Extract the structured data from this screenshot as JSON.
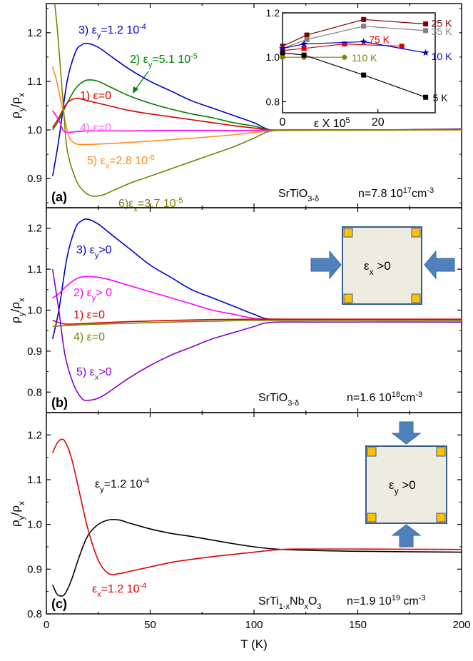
{
  "chart_data": [
    {
      "type": "line",
      "panel_label": "(a)",
      "ylabel": "ρy/ρx",
      "xlabel": "",
      "xlim": [
        0,
        200
      ],
      "ylim": [
        0.84,
        1.26
      ],
      "yticks": [
        "0.9",
        "1.0",
        "1.1",
        "1.2"
      ],
      "sample": "SrTiO3-δ",
      "density": "n=7.8 10^17 cm^-3",
      "series": [
        {
          "name": "3) εy=1.2 10^-4",
          "color": "#0000cc",
          "x": [
            3,
            6,
            10,
            14,
            17,
            20,
            25,
            30,
            40,
            50,
            60,
            70,
            80,
            90,
            100,
            108,
            120,
            140,
            160,
            200
          ],
          "values": [
            0.905,
            0.98,
            1.1,
            1.16,
            1.175,
            1.178,
            1.17,
            1.155,
            1.125,
            1.1,
            1.08,
            1.06,
            1.045,
            1.03,
            1.015,
            1.0,
            1.0,
            1.0,
            1.0,
            1.002
          ]
        },
        {
          "name": "2) εy=5.1 10^-5",
          "color": "#007f00",
          "x": [
            3,
            6,
            10,
            14,
            18,
            21,
            25,
            30,
            40,
            50,
            60,
            70,
            80,
            90,
            100,
            108,
            120,
            160,
            200
          ],
          "values": [
            1.0,
            1.02,
            1.055,
            1.085,
            1.1,
            1.103,
            1.1,
            1.09,
            1.07,
            1.055,
            1.043,
            1.033,
            1.025,
            1.015,
            1.008,
            1.0,
            1.0,
            1.0,
            1.001
          ]
        },
        {
          "name": "1) ε=0",
          "color": "#dd0000",
          "x": [
            3,
            6,
            9,
            12,
            15,
            20,
            30,
            40,
            50,
            60,
            70,
            80,
            90,
            100,
            108,
            120,
            160,
            200
          ],
          "values": [
            1.005,
            1.025,
            1.05,
            1.062,
            1.065,
            1.06,
            1.05,
            1.04,
            1.033,
            1.027,
            1.021,
            1.015,
            1.009,
            1.004,
            1.0,
            1.0,
            1.0,
            1.001
          ]
        },
        {
          "name": "4) ε=0",
          "color": "#ff00ff",
          "x": [
            3,
            6,
            8,
            10,
            13,
            20,
            40,
            60,
            80,
            100,
            110,
            150,
            200
          ],
          "values": [
            1.04,
            1.02,
            1.0,
            0.995,
            0.996,
            0.998,
            0.998,
            0.999,
            0.999,
            0.999,
            1.0,
            1.0,
            1.0
          ]
        },
        {
          "name": "5) εx=2.8 10^-6",
          "color": "#ff8c1a",
          "x": [
            3,
            5,
            7,
            9,
            11,
            14,
            18,
            25,
            35,
            50,
            70,
            90,
            108,
            130,
            200
          ],
          "values": [
            1.13,
            1.1,
            1.06,
            1.02,
            0.985,
            0.972,
            0.97,
            0.971,
            0.973,
            0.977,
            0.983,
            0.99,
            0.998,
            0.999,
            1.0
          ]
        },
        {
          "name": "6) εx=3.7 10^-5",
          "color": "#7f7f00",
          "x": [
            4,
            5,
            6,
            8,
            10,
            14,
            18,
            22,
            27,
            32,
            40,
            50,
            60,
            70,
            80,
            90,
            100,
            108,
            120,
            160,
            200
          ],
          "values": [
            1.26,
            1.22,
            1.17,
            1.06,
            0.96,
            0.9,
            0.874,
            0.864,
            0.866,
            0.875,
            0.89,
            0.905,
            0.92,
            0.935,
            0.95,
            0.965,
            0.983,
            0.998,
            1.0,
            1.0,
            1.001
          ]
        }
      ],
      "annotations": [
        "3) εy=1.2 10^-4",
        "2) εy=5.1 10^-5",
        "1) ε=0",
        "4) ε=0",
        "5) εx=2.8 10^-6",
        "6) εx=3.7 10^-5"
      ],
      "inset": {
        "type": "line",
        "xlabel": "ε X 10^5",
        "xlim": [
          0,
          32
        ],
        "ylim": [
          0.75,
          1.2
        ],
        "xticks": [
          "0",
          "20"
        ],
        "yticks": [
          "0.8",
          "1.0",
          "1.2"
        ],
        "series": [
          {
            "name": "25 K",
            "color": "#7f0000",
            "marker": "square",
            "x": [
              0,
              5.1,
              17,
              30
            ],
            "values": [
              1.05,
              1.1,
              1.17,
              1.15
            ]
          },
          {
            "name": "35 K",
            "color": "#808080",
            "marker": "square",
            "x": [
              0,
              5.1,
              17,
              30
            ],
            "values": [
              1.04,
              1.08,
              1.14,
              1.12
            ]
          },
          {
            "name": "75 K",
            "color": "#dd0000",
            "marker": "square",
            "x": [
              0,
              4.5,
              13,
              25
            ],
            "values": [
              1.03,
              1.04,
              1.06,
              1.05
            ]
          },
          {
            "name": "10 K",
            "color": "#0000cc",
            "marker": "star",
            "x": [
              0,
              4.5,
              17,
              30
            ],
            "values": [
              1.04,
              1.06,
              1.07,
              1.02
            ]
          },
          {
            "name": "110 K",
            "color": "#7f7f00",
            "marker": "circle",
            "x": [
              0,
              4.5,
              13
            ],
            "values": [
              1.0,
              1.0,
              1.0
            ]
          },
          {
            "name": "5 K",
            "color": "#000000",
            "marker": "square",
            "x": [
              0,
              4.5,
              17,
              30
            ],
            "values": [
              1.02,
              1.01,
              0.92,
              0.82
            ]
          }
        ]
      }
    },
    {
      "type": "line",
      "panel_label": "(b)",
      "ylabel": "ρy/ρx",
      "xlabel": "",
      "xlim": [
        0,
        200
      ],
      "ylim": [
        0.75,
        1.25
      ],
      "yticks": [
        "0.8",
        "0.9",
        "1.0",
        "1.1",
        "1.2"
      ],
      "sample": "SrTiO3-δ",
      "density": "n=1.6 10^18 cm^-3",
      "series": [
        {
          "name": "3) εy>0",
          "color": "#0000cc",
          "x": [
            3,
            6,
            10,
            14,
            17,
            20,
            25,
            30,
            40,
            50,
            60,
            70,
            80,
            90,
            100,
            108,
            130,
            200
          ],
          "values": [
            0.93,
            1.0,
            1.13,
            1.2,
            1.218,
            1.222,
            1.21,
            1.19,
            1.15,
            1.11,
            1.08,
            1.05,
            1.03,
            1.01,
            0.99,
            0.978,
            0.976,
            0.975
          ]
        },
        {
          "name": "2) εy> 0",
          "color": "#ff00ff",
          "x": [
            3,
            6,
            10,
            15,
            20,
            25,
            30,
            40,
            50,
            60,
            70,
            80,
            90,
            100,
            108,
            130,
            200
          ],
          "values": [
            1.03,
            1.04,
            1.06,
            1.078,
            1.082,
            1.08,
            1.075,
            1.06,
            1.045,
            1.03,
            1.015,
            1.0,
            0.99,
            0.98,
            0.977,
            0.976,
            0.976
          ]
        },
        {
          "name": "1) ε=0",
          "color": "#dd0000",
          "x": [
            3,
            8,
            12,
            20,
            40,
            60,
            80,
            100,
            120,
            160,
            200
          ],
          "values": [
            0.975,
            0.967,
            0.966,
            0.968,
            0.972,
            0.975,
            0.977,
            0.978,
            0.978,
            0.978,
            0.978
          ]
        },
        {
          "name": "4) ε=0",
          "color": "#7f7f00",
          "x": [
            3,
            8,
            12,
            20,
            40,
            60,
            80,
            100,
            120,
            160,
            200
          ],
          "values": [
            0.96,
            0.962,
            0.963,
            0.965,
            0.968,
            0.971,
            0.973,
            0.975,
            0.975,
            0.975,
            0.975
          ]
        },
        {
          "name": "5) εx>0",
          "color": "#8800cc",
          "x": [
            3,
            6,
            9,
            13,
            17,
            20,
            25,
            30,
            40,
            50,
            60,
            70,
            80,
            90,
            100,
            108,
            130,
            200
          ],
          "values": [
            1.1,
            1.0,
            0.89,
            0.82,
            0.785,
            0.78,
            0.785,
            0.8,
            0.835,
            0.865,
            0.89,
            0.91,
            0.93,
            0.945,
            0.96,
            0.97,
            0.971,
            0.971
          ]
        }
      ],
      "annotations": [
        "3) εy>0",
        "2) εy> 0",
        "1) ε=0",
        "4) ε=0",
        "5) εx>0"
      ],
      "diagram_label": "εx>0"
    },
    {
      "type": "line",
      "panel_label": "(c)",
      "ylabel": "ρy/ρx",
      "xlabel": "T (K)",
      "xlim": [
        0,
        200
      ],
      "ylim": [
        0.8,
        1.25
      ],
      "xticks": [
        "0",
        "50",
        "100",
        "150",
        "200"
      ],
      "yticks": [
        "0.8",
        "0.9",
        "1.0",
        "1.1",
        "1.2"
      ],
      "sample": "SrTi1-xNbxO3",
      "density": "n=1.9 10^19 cm^-3",
      "series": [
        {
          "name": "εy=1.2 10^-4",
          "color": "#000000",
          "x": [
            3,
            5,
            7,
            9,
            12,
            16,
            20,
            25,
            30,
            35,
            40,
            50,
            60,
            70,
            80,
            90,
            100,
            110,
            120,
            150,
            200
          ],
          "values": [
            0.865,
            0.845,
            0.84,
            0.845,
            0.875,
            0.93,
            0.975,
            1.0,
            1.01,
            1.01,
            1.003,
            0.99,
            0.98,
            0.973,
            0.965,
            0.957,
            0.95,
            0.945,
            0.943,
            0.94,
            0.938
          ]
        },
        {
          "name": "εx=1.2 10^-4",
          "color": "#dd0000",
          "x": [
            3,
            5,
            7,
            9,
            12,
            16,
            20,
            25,
            30,
            35,
            40,
            50,
            60,
            70,
            80,
            90,
            100,
            110,
            120,
            150,
            200
          ],
          "values": [
            1.16,
            1.18,
            1.19,
            1.185,
            1.15,
            1.07,
            0.99,
            0.92,
            0.89,
            0.89,
            0.895,
            0.905,
            0.915,
            0.922,
            0.928,
            0.933,
            0.938,
            0.943,
            0.945,
            0.945,
            0.944
          ]
        }
      ],
      "annotations": [
        "εy=1.2 10^-4",
        "εx=1.2 10^-4"
      ],
      "diagram_label": "εy>0"
    }
  ],
  "colors": {
    "arrow_fill": "#4f81bd",
    "arrow_stroke": "#3a6597",
    "square_fill": "#eeece1",
    "square_stroke": "#385d8a",
    "corner_fill": "#ffc000"
  }
}
